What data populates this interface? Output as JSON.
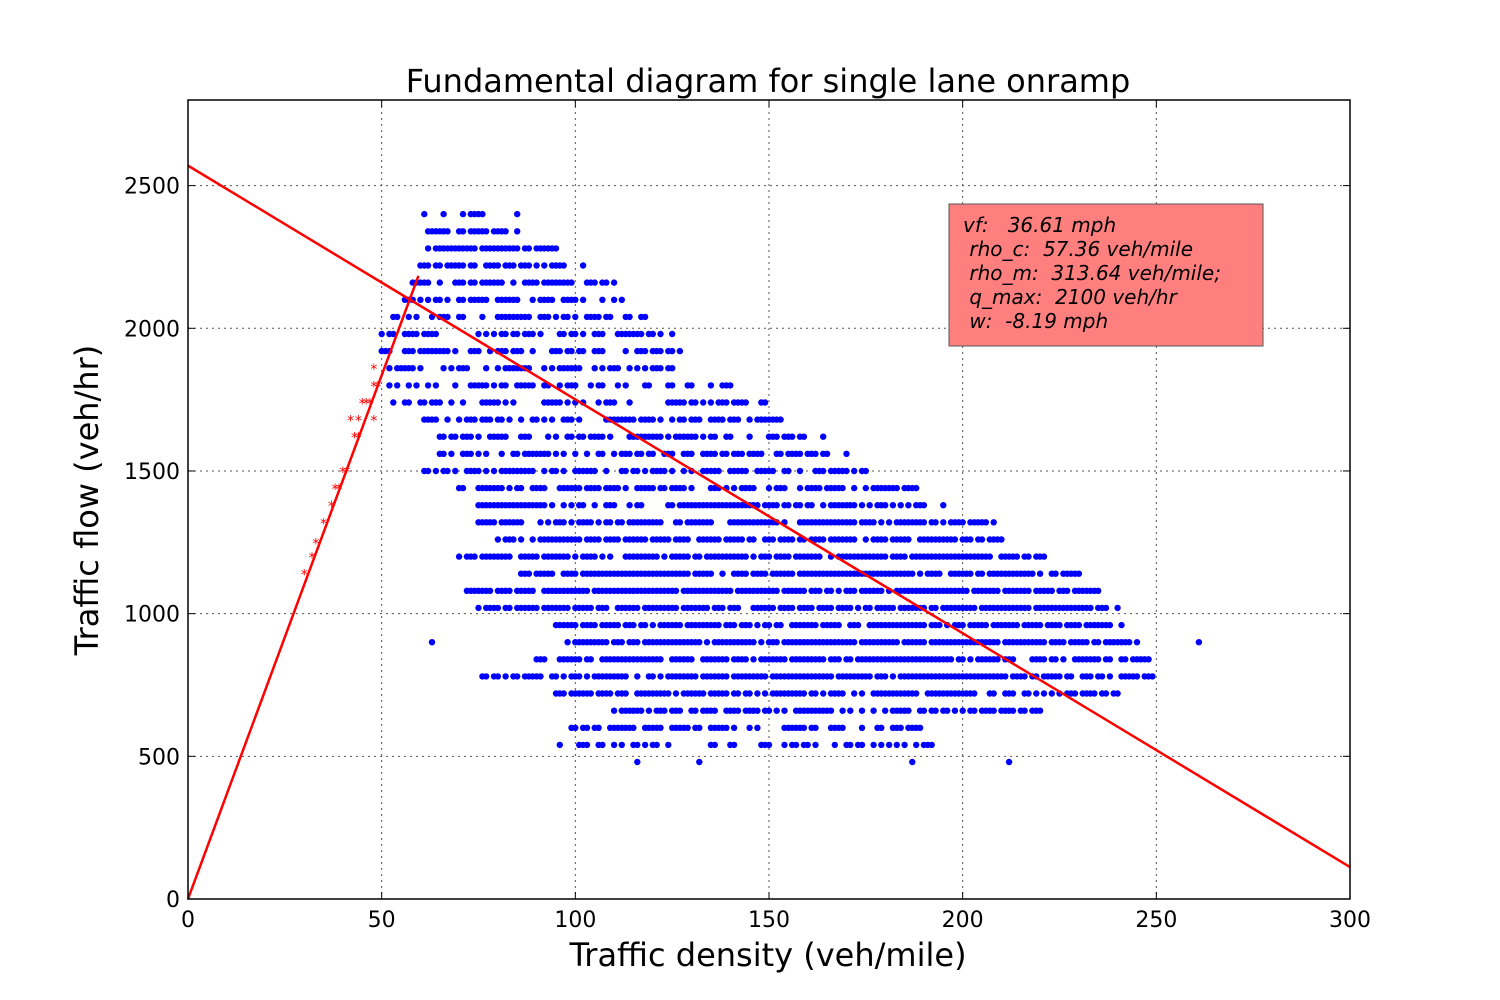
{
  "chart_data": {
    "type": "scatter",
    "title": "Fundamental diagram for single lane onramp",
    "xlabel": "Traffic density (veh/mile)",
    "ylabel": "Traffic flow (veh/hr)",
    "xlim": [
      0,
      300
    ],
    "ylim": [
      0,
      2800
    ],
    "xticks": [
      0,
      50,
      100,
      150,
      200,
      250,
      300
    ],
    "yticks": [
      0,
      500,
      1000,
      1500,
      2000,
      2500
    ],
    "grid": true,
    "colors": {
      "observed": "#0000ff",
      "free_flow": "#ff0000",
      "fit_line": "#ff0000",
      "annotation_box": "#ff7f7f"
    },
    "fit_lines": [
      {
        "x": [
          0,
          59.5
        ],
        "y": [
          0,
          2184
        ]
      },
      {
        "x": [
          0,
          300
        ],
        "y": [
          2570,
          112
        ]
      }
    ],
    "free_flow_stars": [
      [
        30,
        1140
      ],
      [
        32,
        1200
      ],
      [
        33,
        1250
      ],
      [
        35,
        1320
      ],
      [
        37,
        1380
      ],
      [
        38,
        1440
      ],
      [
        39,
        1440
      ],
      [
        40,
        1500
      ],
      [
        41,
        1500
      ],
      [
        42,
        1680
      ],
      [
        43,
        1620
      ],
      [
        44,
        1620
      ],
      [
        44,
        1680
      ],
      [
        45,
        1740
      ],
      [
        46,
        1740
      ],
      [
        47,
        1740
      ],
      [
        48,
        1800
      ],
      [
        48,
        1860
      ],
      [
        49,
        1800
      ],
      [
        48,
        1680
      ]
    ],
    "observed_rows": [
      {
        "y": 2400,
        "segments": [
          [
            60,
            79,
            0.6
          ]
        ],
        "extra": [
          85
        ]
      },
      {
        "y": 2340,
        "segments": [
          [
            62,
            85,
            0.8
          ]
        ]
      },
      {
        "y": 2280,
        "segments": [
          [
            62,
            95,
            0.8
          ]
        ]
      },
      {
        "y": 2220,
        "segments": [
          [
            60,
            102,
            0.7
          ]
        ]
      },
      {
        "y": 2160,
        "segments": [
          [
            57,
            110,
            0.65
          ]
        ]
      },
      {
        "y": 2100,
        "segments": [
          [
            55,
            112,
            0.6
          ]
        ]
      },
      {
        "y": 2040,
        "segments": [
          [
            52,
            120,
            0.6
          ]
        ]
      },
      {
        "y": 1980,
        "segments": [
          [
            50,
            125,
            0.55
          ]
        ]
      },
      {
        "y": 1920,
        "segments": [
          [
            50,
            128,
            0.5
          ]
        ]
      },
      {
        "y": 1860,
        "segments": [
          [
            52,
            130,
            0.5
          ]
        ]
      },
      {
        "y": 1800,
        "segments": [
          [
            52,
            142,
            0.5
          ]
        ]
      },
      {
        "y": 1740,
        "segments": [
          [
            52,
            150,
            0.5
          ]
        ]
      },
      {
        "y": 1680,
        "segments": [
          [
            60,
            155,
            0.55
          ]
        ]
      },
      {
        "y": 1620,
        "segments": [
          [
            65,
            164,
            0.6
          ]
        ]
      },
      {
        "y": 1560,
        "segments": [
          [
            65,
            170,
            0.6
          ]
        ]
      },
      {
        "y": 1500,
        "segments": [
          [
            61,
            175,
            0.6
          ]
        ]
      },
      {
        "y": 1440,
        "segments": [
          [
            70,
            190,
            0.65
          ]
        ]
      },
      {
        "y": 1380,
        "segments": [
          [
            75,
            195,
            0.7
          ]
        ]
      },
      {
        "y": 1320,
        "segments": [
          [
            75,
            208,
            0.75
          ]
        ]
      },
      {
        "y": 1260,
        "segments": [
          [
            80,
            210,
            0.8
          ]
        ]
      },
      {
        "y": 1200,
        "segments": [
          [
            70,
            222,
            0.8
          ]
        ]
      },
      {
        "y": 1140,
        "segments": [
          [
            85,
            230,
            0.85
          ]
        ]
      },
      {
        "y": 1080,
        "segments": [
          [
            72,
            235,
            0.85
          ]
        ]
      },
      {
        "y": 1020,
        "segments": [
          [
            75,
            240,
            0.85
          ]
        ]
      },
      {
        "y": 960,
        "segments": [
          [
            95,
            242,
            0.85
          ]
        ]
      },
      {
        "y": 900,
        "segments": [
          [
            98,
            245,
            0.9
          ]
        ],
        "extra": [
          63,
          261
        ]
      },
      {
        "y": 840,
        "segments": [
          [
            90,
            248,
            0.85
          ]
        ]
      },
      {
        "y": 780,
        "segments": [
          [
            75,
            250,
            0.8
          ]
        ]
      },
      {
        "y": 720,
        "segments": [
          [
            95,
            240,
            0.75
          ]
        ]
      },
      {
        "y": 660,
        "segments": [
          [
            110,
            220,
            0.7
          ]
        ]
      },
      {
        "y": 600,
        "segments": [
          [
            98,
            190,
            0.55
          ]
        ]
      },
      {
        "y": 540,
        "segments": [
          [
            96,
            195,
            0.4
          ]
        ]
      },
      {
        "y": 480,
        "segments": [],
        "extra": [
          116,
          132,
          187,
          212
        ]
      }
    ],
    "annotation_lines": [
      "vf:   36.61 mph",
      " rho_c:  57.36 veh/mile",
      " rho_m:  313.64 veh/mile;",
      " q_max:  2100 veh/hr",
      " w:  -8.19 mph"
    ]
  }
}
